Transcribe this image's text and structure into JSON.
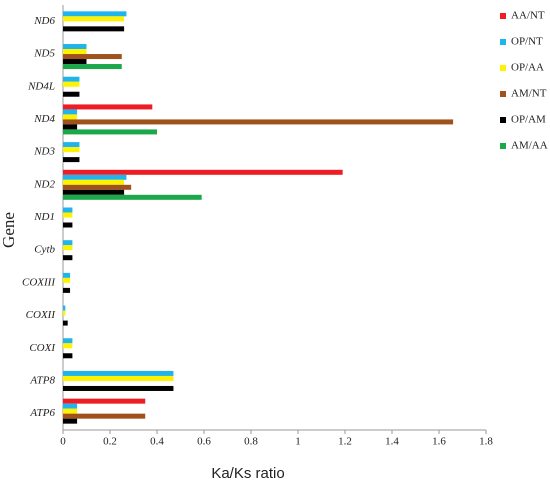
{
  "chart_data": {
    "type": "hbar",
    "x_label": "Ka/Ks ratio",
    "y_label": "Gene",
    "categories": [
      "ND6",
      "ND5",
      "ND4L",
      "ND4",
      "ND3",
      "ND2",
      "ND1",
      "Cytb",
      "COXIII",
      "COXII",
      "COXI",
      "ATP8",
      "ATP6"
    ],
    "series": [
      {
        "name": "AA/NT",
        "color": "#ee1c25",
        "values": [
          null,
          null,
          null,
          0.38,
          null,
          1.19,
          null,
          null,
          null,
          null,
          null,
          null,
          0.35
        ]
      },
      {
        "name": "OP/NT",
        "color": "#1fb4ec",
        "values": [
          0.27,
          0.1,
          0.07,
          0.06,
          0.07,
          0.27,
          0.04,
          0.04,
          0.03,
          0.01,
          0.04,
          0.47,
          0.06
        ]
      },
      {
        "name": "OP/AA",
        "color": "#fff200",
        "values": [
          0.26,
          0.1,
          0.07,
          0.06,
          0.07,
          0.26,
          0.04,
          0.04,
          0.03,
          0.01,
          0.04,
          0.47,
          0.06
        ]
      },
      {
        "name": "AM/NT",
        "color": "#a0521c",
        "values": [
          null,
          0.25,
          null,
          1.66,
          null,
          0.29,
          null,
          null,
          null,
          null,
          null,
          null,
          0.35
        ]
      },
      {
        "name": "OP/AM",
        "color": "#000000",
        "values": [
          0.26,
          0.1,
          0.07,
          0.06,
          0.07,
          0.26,
          0.04,
          0.04,
          0.03,
          0.02,
          0.04,
          0.47,
          0.06
        ]
      },
      {
        "name": "AM/AA",
        "color": "#1aa84a",
        "values": [
          null,
          0.25,
          null,
          0.4,
          null,
          0.59,
          null,
          null,
          null,
          null,
          null,
          null,
          null
        ]
      }
    ],
    "xlim": [
      0,
      1.8
    ],
    "xticks": [
      0,
      0.2,
      0.4,
      0.6,
      0.8,
      1,
      1.2,
      1.4,
      1.6,
      1.8
    ]
  }
}
